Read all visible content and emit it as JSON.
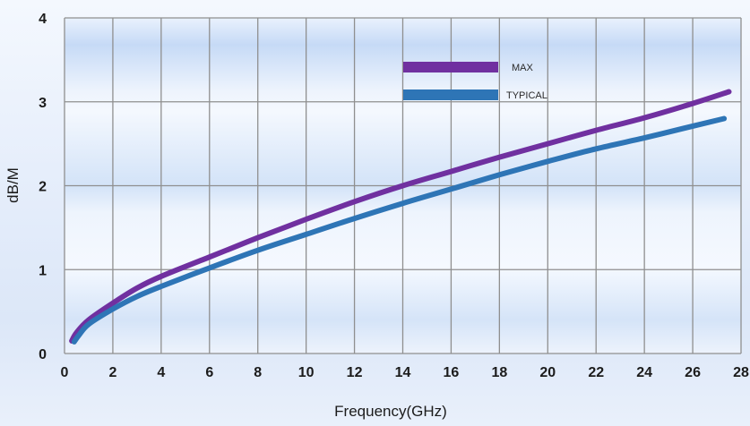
{
  "chart_data": {
    "type": "line",
    "title": "",
    "xlabel": "Frequency(GHz)",
    "ylabel": "dB/M",
    "xlim": [
      0,
      28
    ],
    "ylim": [
      0,
      4
    ],
    "xticks": [
      "0",
      "2",
      "4",
      "6",
      "8",
      "10",
      "12",
      "14",
      "16",
      "18",
      "20",
      "22",
      "24",
      "26",
      "28"
    ],
    "yticks": [
      "0",
      "1",
      "2",
      "3",
      "4"
    ],
    "grid": true,
    "legend_position": "top-center",
    "series": [
      {
        "name": "MAX",
        "color": "#7030a0",
        "x": [
          0.3,
          0.5,
          1,
          2,
          3,
          4,
          6,
          8,
          10,
          12,
          14,
          16,
          18,
          20,
          22,
          24,
          26,
          27.5
        ],
        "y": [
          0.15,
          0.25,
          0.4,
          0.6,
          0.78,
          0.92,
          1.15,
          1.38,
          1.6,
          1.81,
          2.0,
          2.17,
          2.34,
          2.5,
          2.66,
          2.81,
          2.98,
          3.12
        ]
      },
      {
        "name": "TYPICAL",
        "color": "#2e75b6",
        "x": [
          0.4,
          0.6,
          1,
          2,
          3,
          4,
          6,
          8,
          10,
          12,
          14,
          16,
          18,
          20,
          22,
          24,
          26,
          27.3
        ],
        "y": [
          0.14,
          0.22,
          0.35,
          0.53,
          0.68,
          0.8,
          1.02,
          1.23,
          1.42,
          1.61,
          1.79,
          1.96,
          2.13,
          2.29,
          2.44,
          2.57,
          2.71,
          2.8
        ]
      }
    ]
  }
}
